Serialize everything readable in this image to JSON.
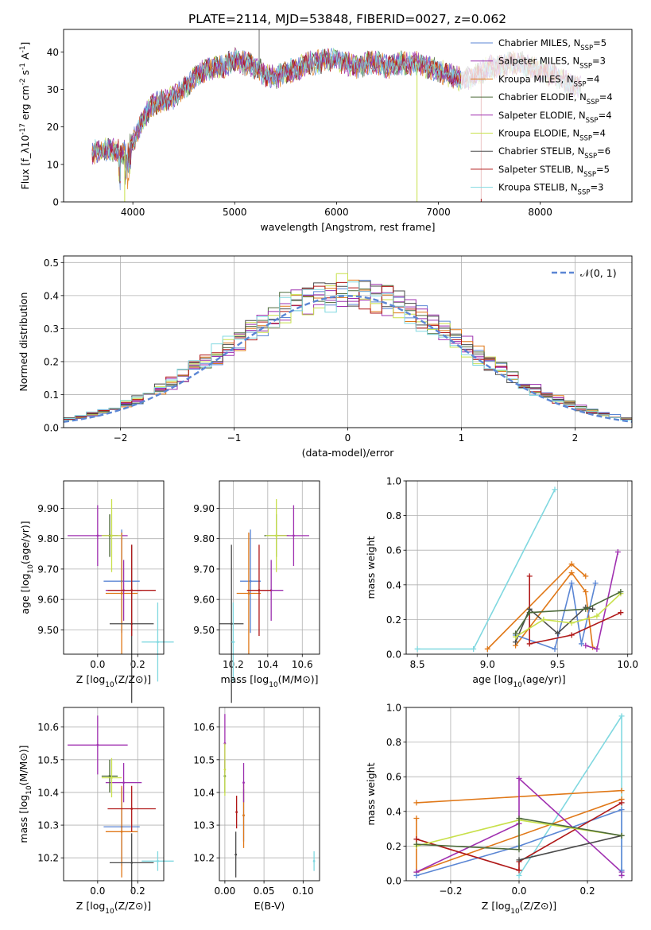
{
  "figure_title": "PLATE=2114, MJD=53848, FIBERID=0027, z=0.062",
  "colors": {
    "Chabrier MILES": "#5b86d4",
    "Salpeter MILES": "#9b2fae",
    "Kroupa MILES": "#e07818",
    "Chabrier ELODIE": "#4d6a3a",
    "Salpeter ELODIE": "#a030b0",
    "Kroupa ELODIE": "#c8e04a",
    "Chabrier STELIB": "#4a4a4a",
    "Salpeter STELIB": "#b01818",
    "Kroupa STELIB": "#80d8e0",
    "gaussian": "#5b86d4"
  },
  "chart_data": [
    {
      "id": "spectrum",
      "type": "line",
      "xlabel": "wavelength [Angstrom, rest frame]",
      "ylabel": "Flux [f_λ10^-17 erg cm^-2 s^-1 A^-1]",
      "xlim": [
        3320,
        8900
      ],
      "ylim": [
        0,
        46
      ],
      "xticks": [
        4000,
        5000,
        6000,
        7000,
        8000
      ],
      "yticks": [
        0,
        10,
        20,
        30,
        40
      ],
      "grid": false,
      "legend": "top-right",
      "continuum": {
        "x": [
          3600,
          3700,
          3800,
          3900,
          4000,
          4100,
          4200,
          4300,
          4400,
          4500,
          4600,
          4700,
          4800,
          4900,
          5000,
          5100,
          5200,
          5300,
          5400,
          5500,
          5600,
          5700,
          5800,
          5900,
          6000,
          6100,
          6200,
          6300,
          6400,
          6500,
          6600,
          6700,
          6800,
          6900,
          7000,
          7100,
          7200,
          7300,
          7400,
          7500,
          7600,
          7700,
          7800,
          7900,
          8000,
          8100,
          8200,
          8300,
          8400
        ],
        "y": [
          13,
          14,
          14,
          13,
          16,
          22,
          26,
          27,
          28,
          30,
          33,
          35,
          36,
          36,
          38,
          37,
          36,
          34,
          33,
          35,
          35,
          37,
          37,
          38,
          38,
          37,
          36,
          37,
          37,
          36,
          37,
          37,
          37,
          36,
          35,
          34,
          33,
          33,
          34,
          36,
          36,
          37,
          37,
          36,
          35,
          34,
          33,
          31,
          31
        ]
      },
      "series": [
        {
          "name": "Chabrier MILES",
          "n_ssp": "5"
        },
        {
          "name": "Salpeter MILES",
          "n_ssp": "3"
        },
        {
          "name": "Kroupa MILES",
          "n_ssp": "4"
        },
        {
          "name": "Chabrier ELODIE",
          "n_ssp": "4"
        },
        {
          "name": "Salpeter ELODIE",
          "n_ssp": "4"
        },
        {
          "name": "Kroupa ELODIE",
          "n_ssp": "4"
        },
        {
          "name": "Chabrier STELIB",
          "n_ssp": "6"
        },
        {
          "name": "Salpeter STELIB",
          "n_ssp": "5"
        },
        {
          "name": "Kroupa STELIB",
          "n_ssp": "3"
        }
      ],
      "dropouts": [
        {
          "series": "Kroupa ELODIE",
          "x": 3920
        },
        {
          "series": "Kroupa ELODIE",
          "x": 6790
        },
        {
          "series": "Salpeter STELIB",
          "x": 7420
        }
      ],
      "spike": {
        "x": 5240,
        "y": 46
      }
    },
    {
      "id": "residuals",
      "type": "line",
      "xlabel": "(data-model)/error",
      "ylabel": "Normed distribution",
      "xlim": [
        -2.5,
        2.5
      ],
      "ylim": [
        0,
        0.52
      ],
      "xticks": [
        -2,
        -1,
        0,
        1,
        2
      ],
      "yticks": [
        0.0,
        0.1,
        0.2,
        0.3,
        0.4,
        0.5
      ],
      "grid": true,
      "legend": "top-right",
      "gaussian_label": "𝒩(0, 1)"
    },
    {
      "id": "age_vs_Z",
      "type": "scatter",
      "xlabel": "Z [log10(Z/Z⊙)]",
      "ylabel": "age  [log10(age/yr)]",
      "xlim": [
        -0.17,
        0.33
      ],
      "ylim": [
        9.42,
        9.99
      ],
      "xticks": [
        0.0,
        0.2
      ],
      "yticks": [
        9.5,
        9.6,
        9.7,
        9.8,
        9.9
      ],
      "grid": true,
      "points": [
        {
          "series": "Chabrier MILES",
          "x": 0.12,
          "y": 9.66,
          "xerr": 0.09,
          "yerr": 0.17
        },
        {
          "series": "Kroupa MILES",
          "x": 0.12,
          "y": 9.62,
          "xerr": 0.08,
          "yerr": 0.2
        },
        {
          "series": "Salpeter MILES",
          "x": 0.13,
          "y": 9.63,
          "xerr": 0.09,
          "yerr": 0.1
        },
        {
          "series": "Chabrier ELODIE",
          "x": 0.06,
          "y": 9.81,
          "xerr": 0.04,
          "yerr": 0.07
        },
        {
          "series": "Salpeter ELODIE",
          "x": 0.0,
          "y": 9.81,
          "xerr": 0.15,
          "yerr": 0.1
        },
        {
          "series": "Kroupa ELODIE",
          "x": 0.07,
          "y": 9.81,
          "xerr": 0.05,
          "yerr": 0.12
        },
        {
          "series": "Chabrier STELIB",
          "x": 0.17,
          "y": 9.52,
          "xerr": 0.11,
          "yerr": 0.26
        },
        {
          "series": "Salpeter STELIB",
          "x": 0.17,
          "y": 9.63,
          "xerr": 0.12,
          "yerr": 0.15
        },
        {
          "series": "Kroupa STELIB",
          "x": 0.3,
          "y": 9.46,
          "xerr": 0.08,
          "yerr": 0.13
        }
      ]
    },
    {
      "id": "age_vs_mass",
      "type": "scatter",
      "xlabel": "mass [log10(M/M⊙)]",
      "ylabel": "",
      "xlim": [
        10.12,
        10.7
      ],
      "ylim": [
        9.42,
        9.99
      ],
      "xticks": [
        10.2,
        10.4,
        10.6
      ],
      "yticks": [
        9.5,
        9.6,
        9.7,
        9.8,
        9.9
      ],
      "grid": true,
      "points": [
        {
          "series": "Chabrier MILES",
          "x": 10.3,
          "y": 9.66,
          "xerr": 0.06,
          "yerr": 0.17
        },
        {
          "series": "Kroupa MILES",
          "x": 10.29,
          "y": 9.62,
          "xerr": 0.07,
          "yerr": 0.2
        },
        {
          "series": "Salpeter MILES",
          "x": 10.42,
          "y": 9.63,
          "xerr": 0.07,
          "yerr": 0.1
        },
        {
          "series": "Chabrier ELODIE",
          "x": 10.45,
          "y": 9.81,
          "xerr": 0.07,
          "yerr": 0.07
        },
        {
          "series": "Salpeter ELODIE",
          "x": 10.55,
          "y": 9.81,
          "xerr": 0.09,
          "yerr": 0.1
        },
        {
          "series": "Kroupa ELODIE",
          "x": 10.45,
          "y": 9.81,
          "xerr": 0.06,
          "yerr": 0.12
        },
        {
          "series": "Chabrier STELIB",
          "x": 10.19,
          "y": 9.52,
          "xerr": 0.07,
          "yerr": 0.26
        },
        {
          "series": "Salpeter STELIB",
          "x": 10.35,
          "y": 9.63,
          "xerr": 0.07,
          "yerr": 0.15
        },
        {
          "series": "Kroupa STELIB",
          "x": 10.2,
          "y": 9.46,
          "xerr": 0.01,
          "yerr": 0.13
        }
      ]
    },
    {
      "id": "weight_vs_age",
      "type": "line",
      "xlabel": "age  [log10(age/yr)]",
      "ylabel": "mass weight",
      "xlim": [
        8.42,
        10.03
      ],
      "ylim": [
        0,
        1.0
      ],
      "xticks": [
        8.5,
        9.0,
        9.5,
        10.0
      ],
      "yticks": [
        0.0,
        0.2,
        0.4,
        0.6,
        0.8,
        1.0
      ],
      "grid": true,
      "series": [
        {
          "name": "Kroupa STELIB",
          "x": [
            8.5,
            8.9,
            9.48
          ],
          "y": [
            0.03,
            0.03,
            0.95
          ]
        },
        {
          "name": "Kroupa MILES",
          "x": [
            9.0,
            9.6,
            9.7
          ],
          "y": [
            0.03,
            0.52,
            0.45
          ]
        },
        {
          "name": "Kroupa MILES",
          "x": [
            9.2,
            9.6,
            9.7,
            9.75
          ],
          "y": [
            0.05,
            0.47,
            0.36,
            0.04
          ]
        },
        {
          "name": "Salpeter ELODIE",
          "x": [
            9.7,
            9.78,
            9.93
          ],
          "y": [
            0.05,
            0.03,
            0.59
          ]
        },
        {
          "name": "Chabrier MILES",
          "x": [
            9.2,
            9.48,
            9.6,
            9.67,
            9.77
          ],
          "y": [
            0.11,
            0.03,
            0.41,
            0.06,
            0.41
          ]
        },
        {
          "name": "Salpeter STELIB",
          "x": [
            9.3,
            9.3,
            9.6,
            9.95
          ],
          "y": [
            0.45,
            0.06,
            0.11,
            0.24
          ]
        },
        {
          "name": "Chabrier STELIB",
          "x": [
            9.2,
            9.3,
            9.5,
            9.7,
            9.75
          ],
          "y": [
            0.07,
            0.26,
            0.12,
            0.27,
            0.26
          ]
        },
        {
          "name": "Kroupa ELODIE",
          "x": [
            9.2,
            9.4,
            9.6,
            9.78,
            9.95
          ],
          "y": [
            0.1,
            0.2,
            0.18,
            0.22,
            0.35
          ]
        },
        {
          "name": "Chabrier ELODIE",
          "x": [
            9.2,
            9.3,
            9.7,
            9.95
          ],
          "y": [
            0.12,
            0.24,
            0.26,
            0.36
          ]
        }
      ]
    },
    {
      "id": "mass_vs_Z",
      "type": "scatter",
      "xlabel": "Z [log10(Z/Z⊙)]",
      "ylabel": "mass [log10(M/M⊙)]",
      "xlim": [
        -0.17,
        0.33
      ],
      "ylim": [
        10.13,
        10.66
      ],
      "xticks": [
        0.0,
        0.2
      ],
      "yticks": [
        10.2,
        10.3,
        10.4,
        10.5,
        10.6
      ],
      "grid": true,
      "points": [
        {
          "series": "Chabrier MILES",
          "x": 0.12,
          "y": 10.295,
          "xerr": 0.09,
          "yerr": 0.12
        },
        {
          "series": "Kroupa MILES",
          "x": 0.12,
          "y": 10.28,
          "xerr": 0.08,
          "yerr": 0.14
        },
        {
          "series": "Salpeter MILES",
          "x": 0.13,
          "y": 10.43,
          "xerr": 0.09,
          "yerr": 0.06
        },
        {
          "series": "Chabrier ELODIE",
          "x": 0.06,
          "y": 10.45,
          "xerr": 0.04,
          "yerr": 0.05
        },
        {
          "series": "Salpeter ELODIE",
          "x": 0.0,
          "y": 10.545,
          "xerr": 0.15,
          "yerr": 0.09
        },
        {
          "series": "Kroupa ELODIE",
          "x": 0.07,
          "y": 10.445,
          "xerr": 0.05,
          "yerr": 0.06
        },
        {
          "series": "Chabrier STELIB",
          "x": 0.17,
          "y": 10.185,
          "xerr": 0.11,
          "yerr": 0.09
        },
        {
          "series": "Salpeter STELIB",
          "x": 0.17,
          "y": 10.35,
          "xerr": 0.12,
          "yerr": 0.07
        },
        {
          "series": "Kroupa STELIB",
          "x": 0.3,
          "y": 10.19,
          "xerr": 0.08,
          "yerr": 0.03
        }
      ]
    },
    {
      "id": "mass_vs_ebv",
      "type": "scatter",
      "xlabel": "E(B-V)",
      "ylabel": "",
      "xlim": [
        -0.007,
        0.121
      ],
      "ylim": [
        10.13,
        10.66
      ],
      "xticks": [
        0.0,
        0.05,
        0.1
      ],
      "yticks": [
        10.2,
        10.3,
        10.4,
        10.5,
        10.6
      ],
      "grid": true,
      "points": [
        {
          "series": "Chabrier MILES",
          "x": 0.024,
          "y": 10.33,
          "xerr": 0,
          "yerr": 0.08
        },
        {
          "series": "Kroupa MILES",
          "x": 0.024,
          "y": 10.33,
          "xerr": 0,
          "yerr": 0.1
        },
        {
          "series": "Salpeter MILES",
          "x": 0.024,
          "y": 10.43,
          "xerr": 0,
          "yerr": 0.06
        },
        {
          "series": "Chabrier ELODIE",
          "x": 0.0,
          "y": 10.45,
          "xerr": 0,
          "yerr": 0.05
        },
        {
          "series": "Salpeter ELODIE",
          "x": 0.0,
          "y": 10.55,
          "xerr": 0,
          "yerr": 0.09
        },
        {
          "series": "Kroupa ELODIE",
          "x": 0.0,
          "y": 10.47,
          "xerr": 0,
          "yerr": 0.08
        },
        {
          "series": "Chabrier STELIB",
          "x": 0.014,
          "y": 10.21,
          "xerr": 0,
          "yerr": 0.07
        },
        {
          "series": "Salpeter STELIB",
          "x": 0.015,
          "y": 10.34,
          "xerr": 0,
          "yerr": 0.05
        },
        {
          "series": "Kroupa STELIB",
          "x": 0.114,
          "y": 10.19,
          "xerr": 0,
          "yerr": 0.03
        }
      ]
    },
    {
      "id": "weight_vs_Z",
      "type": "line",
      "xlabel": "Z [log10(Z/Z⊙)]",
      "ylabel": "mass weight",
      "xlim": [
        -0.33,
        0.33
      ],
      "ylim": [
        0,
        1.0
      ],
      "xticks": [
        -0.2,
        0.0,
        0.2
      ],
      "yticks": [
        0.0,
        0.2,
        0.4,
        0.6,
        0.8,
        1.0
      ],
      "grid": true,
      "series": [
        {
          "name": "Kroupa STELIB",
          "x": [
            0.0,
            0.3,
            0.3
          ],
          "y": [
            0.03,
            0.95,
            0.03
          ]
        },
        {
          "name": "Kroupa MILES",
          "x": [
            -0.3,
            0.3
          ],
          "y": [
            0.45,
            0.52
          ]
        },
        {
          "name": "Kroupa MILES",
          "x": [
            -0.3,
            -0.3,
            0.3
          ],
          "y": [
            0.36,
            0.05,
            0.47
          ]
        },
        {
          "name": "Salpeter ELODIE",
          "x": [
            -0.3,
            0.0,
            0.0,
            0.3,
            0.3
          ],
          "y": [
            0.05,
            0.33,
            0.59,
            0.05,
            0.03
          ]
        },
        {
          "name": "Chabrier MILES",
          "x": [
            -0.3,
            0.0,
            0.3,
            0.3
          ],
          "y": [
            0.03,
            0.2,
            0.41,
            0.06
          ]
        },
        {
          "name": "Salpeter STELIB",
          "x": [
            -0.3,
            0.0,
            0.0,
            0.3
          ],
          "y": [
            0.24,
            0.06,
            0.11,
            0.45
          ]
        },
        {
          "name": "Chabrier STELIB",
          "x": [
            0.0,
            0.3
          ],
          "y": [
            0.12,
            0.26
          ]
        },
        {
          "name": "Kroupa ELODIE",
          "x": [
            -0.3,
            0.0,
            0.3
          ],
          "y": [
            0.2,
            0.35,
            0.26
          ]
        },
        {
          "name": "Chabrier ELODIE",
          "x": [
            -0.3,
            0.0,
            0.0,
            0.3
          ],
          "y": [
            0.21,
            0.18,
            0.36,
            0.26
          ]
        }
      ]
    }
  ]
}
